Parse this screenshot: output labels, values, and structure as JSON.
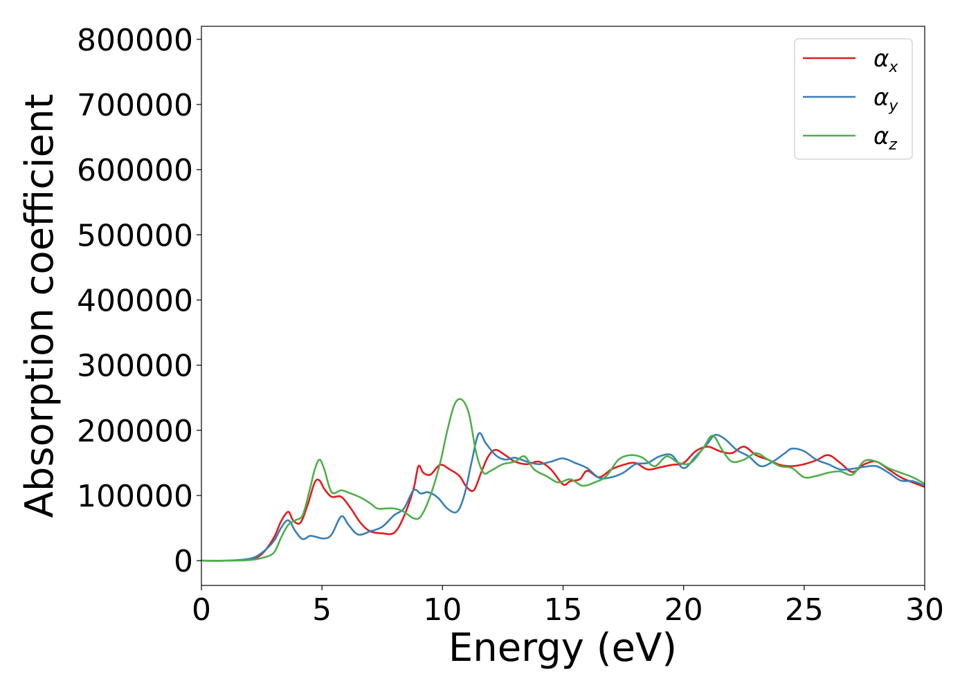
{
  "chart_data": {
    "type": "line",
    "xlabel": "Energy (eV)",
    "ylabel": "Absorption coefficient",
    "xlim": [
      0,
      30
    ],
    "ylim": [
      -38000,
      820000
    ],
    "xticks": [
      0,
      5,
      10,
      15,
      20,
      25,
      30
    ],
    "yticks": [
      0,
      100000,
      200000,
      300000,
      400000,
      500000,
      600000,
      700000,
      800000
    ],
    "grid": false,
    "legend_position": "top-right",
    "series": [
      {
        "name": "α_x",
        "legend_symbol": "α",
        "legend_subscript": "x",
        "color": "#e41a1c",
        "x": [
          0,
          1,
          2,
          2.5,
          3,
          3.3,
          3.6,
          3.8,
          4.1,
          4.4,
          4.7,
          4.9,
          5.1,
          5.4,
          5.8,
          6.2,
          6.6,
          7.0,
          7.5,
          8.0,
          8.4,
          8.8,
          9.0,
          9.2,
          9.5,
          9.9,
          10.3,
          10.7,
          11.0,
          11.3,
          11.6,
          11.9,
          12.2,
          12.6,
          13.0,
          13.5,
          14.0,
          14.5,
          15.0,
          15.3,
          15.7,
          16.0,
          16.5,
          17.0,
          17.5,
          18.0,
          18.5,
          19.0,
          19.5,
          20.0,
          20.5,
          21.0,
          21.5,
          22.0,
          22.5,
          23.0,
          23.5,
          24.0,
          24.5,
          25.0,
          25.5,
          26.0,
          26.5,
          27.0,
          27.5,
          28.0,
          28.5,
          29.0,
          29.5,
          30.0
        ],
        "y": [
          0,
          0,
          2000,
          10000,
          35000,
          60000,
          75000,
          62000,
          58000,
          85000,
          120000,
          123000,
          110000,
          98000,
          98000,
          80000,
          58000,
          45000,
          42000,
          43000,
          68000,
          110000,
          145000,
          135000,
          132000,
          147000,
          140000,
          130000,
          113000,
          108000,
          135000,
          160000,
          170000,
          162000,
          152000,
          148000,
          152000,
          140000,
          117000,
          122000,
          125000,
          138000,
          128000,
          140000,
          147000,
          150000,
          140000,
          143000,
          147000,
          150000,
          168000,
          175000,
          168000,
          165000,
          175000,
          162000,
          155000,
          147000,
          145000,
          148000,
          154000,
          162000,
          150000,
          136000,
          148000,
          152000,
          140000,
          128000,
          120000,
          113000
        ]
      },
      {
        "name": "α_y",
        "legend_symbol": "α",
        "legend_subscript": "y",
        "color": "#377eb8",
        "x": [
          0,
          1,
          2,
          2.5,
          3,
          3.3,
          3.6,
          3.9,
          4.2,
          4.5,
          4.8,
          5.1,
          5.4,
          5.8,
          6.1,
          6.5,
          7.0,
          7.5,
          8.0,
          8.4,
          8.8,
          9.1,
          9.4,
          9.8,
          10.2,
          10.6,
          10.9,
          11.2,
          11.5,
          11.8,
          12.2,
          12.6,
          13.0,
          13.5,
          14.0,
          14.5,
          15.0,
          15.5,
          16.0,
          16.5,
          17.0,
          17.5,
          18.0,
          18.5,
          19.0,
          19.5,
          20.0,
          20.5,
          21.0,
          21.3,
          21.7,
          22.2,
          22.7,
          23.2,
          23.7,
          24.2,
          24.5,
          25.0,
          25.5,
          26.0,
          26.5,
          27.0,
          27.5,
          28.0,
          28.5,
          29.0,
          29.5,
          30.0
        ],
        "y": [
          0,
          0,
          3000,
          12000,
          30000,
          50000,
          62000,
          45000,
          33000,
          38000,
          36000,
          34000,
          40000,
          68000,
          55000,
          40000,
          45000,
          52000,
          70000,
          80000,
          108000,
          103000,
          105000,
          97000,
          80000,
          75000,
          100000,
          150000,
          195000,
          180000,
          162000,
          155000,
          158000,
          152000,
          148000,
          152000,
          157000,
          150000,
          142000,
          127000,
          128000,
          135000,
          148000,
          150000,
          160000,
          162000,
          142000,
          160000,
          180000,
          193000,
          187000,
          170000,
          160000,
          145000,
          152000,
          165000,
          172000,
          168000,
          155000,
          148000,
          140000,
          141000,
          144000,
          145000,
          135000,
          123000,
          122000,
          115000
        ]
      },
      {
        "name": "α_z",
        "legend_symbol": "α",
        "legend_subscript": "z",
        "color": "#4daf4a",
        "x": [
          0,
          1,
          2,
          2.5,
          3,
          3.3,
          3.6,
          3.9,
          4.2,
          4.5,
          4.7,
          4.9,
          5.1,
          5.4,
          5.8,
          6.2,
          6.6,
          7.0,
          7.3,
          7.6,
          8.0,
          8.4,
          8.8,
          9.1,
          9.5,
          9.9,
          10.2,
          10.5,
          10.8,
          11.1,
          11.4,
          11.7,
          12.0,
          12.5,
          13.0,
          13.4,
          13.8,
          14.3,
          14.8,
          15.3,
          15.8,
          16.3,
          16.8,
          17.3,
          17.8,
          18.3,
          18.8,
          19.3,
          19.8,
          20.3,
          20.8,
          21.2,
          21.6,
          22.0,
          22.5,
          23.0,
          23.5,
          24.0,
          24.5,
          25.0,
          25.5,
          26.0,
          26.5,
          27.0,
          27.5,
          28.0,
          28.5,
          29.0,
          29.5,
          30.0
        ],
        "y": [
          0,
          0,
          1000,
          4000,
          12000,
          35000,
          55000,
          62000,
          70000,
          110000,
          140000,
          155000,
          140000,
          105000,
          108000,
          103000,
          97000,
          88000,
          80000,
          80000,
          80000,
          75000,
          65000,
          68000,
          100000,
          150000,
          200000,
          240000,
          247000,
          225000,
          165000,
          135000,
          138000,
          148000,
          152000,
          160000,
          140000,
          130000,
          120000,
          125000,
          115000,
          120000,
          130000,
          155000,
          162000,
          158000,
          145000,
          160000,
          150000,
          150000,
          172000,
          192000,
          170000,
          152000,
          155000,
          165000,
          155000,
          145000,
          142000,
          128000,
          130000,
          135000,
          137000,
          132000,
          153000,
          152000,
          142000,
          135000,
          128000,
          118000
        ]
      }
    ]
  }
}
